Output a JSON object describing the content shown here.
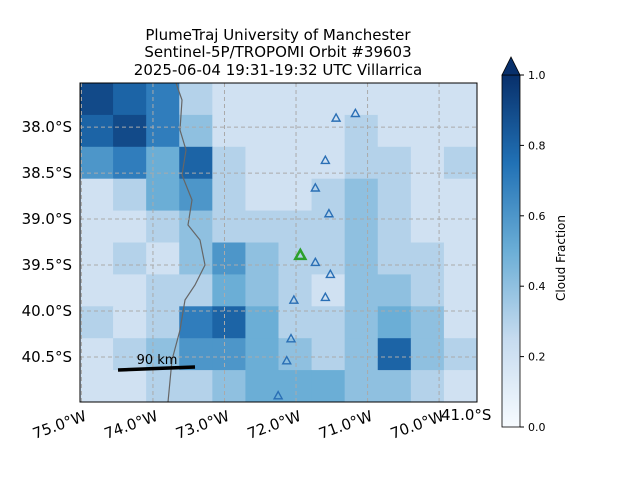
{
  "chart_data": {
    "type": "map",
    "title_lines": [
      "PlumeTraj    University of Manchester",
      "Sentinel-5P/TROPOMI Orbit #39603",
      "2025-06-04    19:31-19:32 UTC    Villarrica"
    ],
    "xlim": [
      -75.02,
      -69.47
    ],
    "ylim": [
      -37.52,
      -40.99
    ],
    "xticks": [
      {
        "value": -75,
        "label": "75.0°W"
      },
      {
        "value": -74,
        "label": "74.0°W"
      },
      {
        "value": -73,
        "label": "73.0°W"
      },
      {
        "value": -72,
        "label": "72.0°W"
      },
      {
        "value": -71,
        "label": "71.0°W"
      },
      {
        "value": -70,
        "label": "70.0°W"
      }
    ],
    "corner_label": "41.0°S",
    "yticks": [
      {
        "value": -38,
        "label": "38.0°S"
      },
      {
        "value": -38.5,
        "label": "38.5°S"
      },
      {
        "value": -39,
        "label": "39.0°S"
      },
      {
        "value": -39.5,
        "label": "39.5°S"
      },
      {
        "value": -40,
        "label": "40.0°S"
      },
      {
        "value": -40.5,
        "label": "40.5°S"
      }
    ],
    "grid": true,
    "cloud_fraction": [
      [
        0.9,
        0.8,
        0.7,
        0.3,
        0.2,
        0.2,
        0.2,
        0.2,
        0.2,
        0.2,
        0.2,
        0.2
      ],
      [
        0.8,
        0.9,
        0.7,
        0.4,
        0.2,
        0.2,
        0.2,
        0.2,
        0.3,
        0.2,
        0.2,
        0.2
      ],
      [
        0.6,
        0.7,
        0.5,
        0.8,
        0.3,
        0.2,
        0.2,
        0.2,
        0.3,
        0.3,
        0.2,
        0.3
      ],
      [
        0.2,
        0.3,
        0.5,
        0.6,
        0.3,
        0.2,
        0.2,
        0.3,
        0.4,
        0.3,
        0.2,
        0.2
      ],
      [
        0.2,
        0.2,
        0.3,
        0.4,
        0.3,
        0.3,
        0.3,
        0.3,
        0.4,
        0.3,
        0.2,
        0.2
      ],
      [
        0.2,
        0.3,
        0.2,
        0.4,
        0.6,
        0.4,
        0.3,
        0.3,
        0.4,
        0.3,
        0.3,
        0.2
      ],
      [
        0.2,
        0.2,
        0.3,
        0.3,
        0.5,
        0.4,
        0.3,
        0.2,
        0.4,
        0.4,
        0.3,
        0.2
      ],
      [
        0.3,
        0.2,
        0.3,
        0.7,
        0.8,
        0.5,
        0.3,
        0.3,
        0.4,
        0.5,
        0.4,
        0.2
      ],
      [
        0.2,
        0.3,
        0.4,
        0.6,
        0.6,
        0.5,
        0.4,
        0.3,
        0.4,
        0.8,
        0.4,
        0.3
      ],
      [
        0.2,
        0.2,
        0.3,
        0.3,
        0.4,
        0.5,
        0.5,
        0.5,
        0.4,
        0.4,
        0.3,
        0.2
      ]
    ],
    "volcanoes": {
      "lon": [
        -71.44,
        -71.17,
        -71.59,
        -71.73,
        -71.54,
        -71.73,
        -71.52,
        -72.03,
        -71.59,
        -72.07,
        -72.13,
        -72.25
      ],
      "lat": [
        -37.9,
        -37.85,
        -38.36,
        -38.66,
        -38.94,
        -39.47,
        -39.6,
        -39.88,
        -39.85,
        -40.3,
        -40.54,
        -40.92
      ],
      "color": "#2a6fb5"
    },
    "target": {
      "lon": -71.94,
      "lat": -39.39,
      "color": "#2ca02c"
    },
    "scale_bar_label": "90 km",
    "colorbar": {
      "label": "Cloud Fraction",
      "lim": [
        0,
        1
      ],
      "ticks": [
        {
          "value": 0,
          "label": "0.0"
        },
        {
          "value": 0.2,
          "label": "0.2"
        },
        {
          "value": 0.4,
          "label": "0.4"
        },
        {
          "value": 0.6,
          "label": "0.6"
        },
        {
          "value": 0.8,
          "label": "0.8"
        },
        {
          "value": 1,
          "label": "1.0"
        }
      ]
    }
  }
}
